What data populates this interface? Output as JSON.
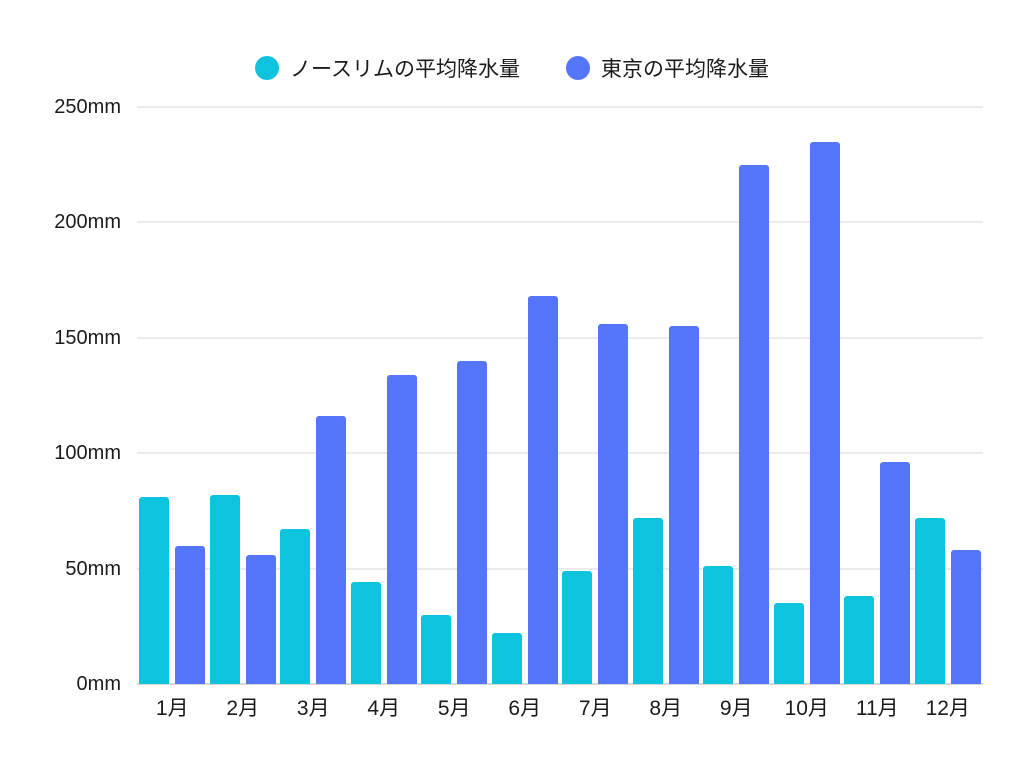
{
  "page": {
    "background_color": "#ffffff",
    "text_color": "#1b1b1b"
  },
  "chart_data": {
    "type": "bar",
    "title": "",
    "categories": [
      "1月",
      "2月",
      "3月",
      "4月",
      "5月",
      "6月",
      "7月",
      "8月",
      "9月",
      "10月",
      "11月",
      "12月"
    ],
    "series": [
      {
        "id": "north-rim",
        "name": "ノースリムの平均降水量",
        "color": "#0EC3DE",
        "values": [
          81,
          82,
          67,
          44,
          30,
          22,
          49,
          72,
          51,
          35,
          38,
          72
        ]
      },
      {
        "id": "tokyo",
        "name": "東京の平均降水量",
        "color": "#5575FA",
        "values": [
          60,
          56,
          116,
          134,
          140,
          168,
          156,
          155,
          225,
          235,
          96,
          58
        ]
      }
    ],
    "xlabel": "",
    "ylabel": "",
    "unit": "mm",
    "ylim": [
      0,
      250
    ],
    "y_ticks": [
      0,
      50,
      100,
      150,
      200,
      250
    ],
    "y_tick_labels": [
      "0mm",
      "50mm",
      "100mm",
      "150mm",
      "200mm",
      "250mm"
    ],
    "grid": true,
    "grid_color": "#ebebeb",
    "zero_line_color": "#d8d8d8",
    "legend_position": "top"
  }
}
